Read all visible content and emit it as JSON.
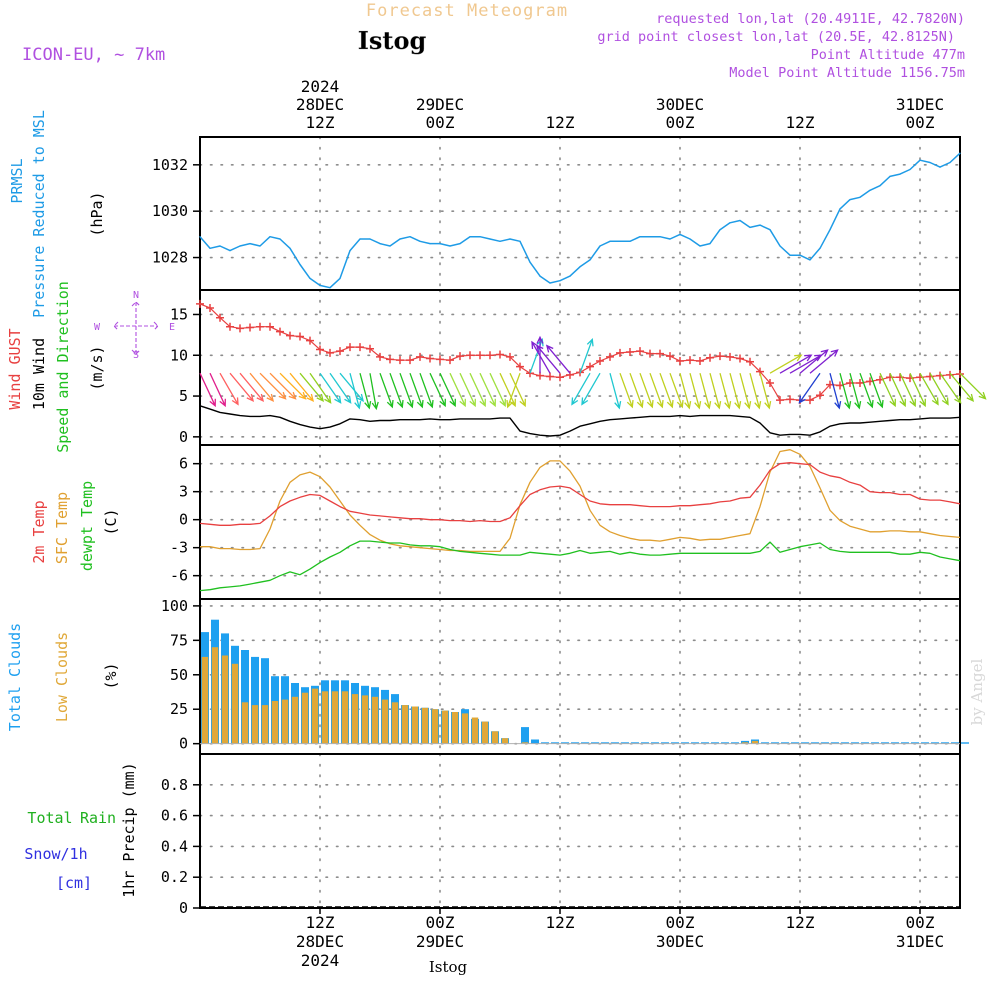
{
  "header": {
    "product": "Forecast Meteogram",
    "location": "Istog",
    "model": "ICON-EU, ~ 7km",
    "requested": "requested lon,lat (20.4911E, 42.7820N)",
    "closest": "grid point closest lon,lat (20.5E, 42.8125N)",
    "point_alt": "Point Altitude 477m",
    "model_alt": "Model Point Altitude 1156.75m",
    "footer_location": "Istog",
    "watermark": "by Angel"
  },
  "time_axis": {
    "top": [
      {
        "h": 12,
        "lines": [
          "2024",
          "28DEC",
          "12Z"
        ]
      },
      {
        "h": 24,
        "lines": [
          "29DEC",
          "00Z"
        ]
      },
      {
        "h": 36,
        "lines": [
          "12Z"
        ]
      },
      {
        "h": 48,
        "lines": [
          "30DEC",
          "00Z"
        ]
      },
      {
        "h": 60,
        "lines": [
          "12Z"
        ]
      },
      {
        "h": 72,
        "lines": [
          "31DEC",
          "00Z"
        ]
      }
    ],
    "bottom": [
      {
        "h": 12,
        "lines": [
          "12Z",
          "28DEC",
          "2024"
        ]
      },
      {
        "h": 24,
        "lines": [
          "00Z",
          "29DEC"
        ]
      },
      {
        "h": 36,
        "lines": [
          "12Z"
        ]
      },
      {
        "h": 48,
        "lines": [
          "00Z",
          "30DEC"
        ]
      },
      {
        "h": 60,
        "lines": [
          "12Z"
        ]
      },
      {
        "h": 72,
        "lines": [
          "00Z",
          "31DEC"
        ]
      }
    ]
  },
  "labels": {
    "pressure": [
      "PRMSL",
      "Pressure Reduced to MSL",
      "(hPa)"
    ],
    "wind": [
      "Wind GUST",
      "10m Wind",
      "Speed and Direction",
      "(m/s)"
    ],
    "compass": [
      "N",
      "W",
      "E",
      "S"
    ],
    "temp": [
      "2m Temp",
      "SFC Temp",
      "dewpt Temp",
      "(C)"
    ],
    "cloud": [
      "Total Clouds",
      "Low Clouds",
      "(%)"
    ],
    "precip": [
      "Total",
      "Rain",
      "Snow/1h",
      "[cm]",
      "1hr Precip (mm)"
    ]
  },
  "colors": {
    "pressure": "#1e9be6",
    "gust": "#e84040",
    "wind": "#000000",
    "t2m": "#e84040",
    "sfc": "#e0a030",
    "dew": "#20c020",
    "total_cloud": "#1ea0f0",
    "low_cloud": "#e0a838",
    "title": "#f0c890",
    "info": "#b050e0",
    "rain": "#20b020",
    "snow": "#3030e0"
  },
  "chart_data": [
    {
      "type": "line",
      "name": "pressure",
      "ylabel": "(hPa)",
      "ylim": [
        1026.6,
        1033.2
      ],
      "yticks": [
        1028,
        1030,
        1032
      ],
      "x_hours": [
        0,
        1,
        2,
        3,
        4,
        5,
        6,
        7,
        8,
        9,
        10,
        11,
        12,
        13,
        14,
        15,
        16,
        17,
        18,
        19,
        20,
        21,
        22,
        23,
        24,
        25,
        26,
        27,
        28,
        29,
        30,
        31,
        32,
        33,
        34,
        35,
        36,
        37,
        38,
        39,
        40,
        41,
        42,
        43,
        44,
        45,
        46,
        47,
        48,
        49,
        50,
        51,
        52,
        53,
        54,
        55,
        56,
        57,
        58,
        59,
        60,
        61,
        62,
        63,
        64,
        65,
        66,
        67,
        68,
        69,
        70,
        71,
        72,
        73,
        74,
        75,
        76
      ],
      "values": [
        1028.9,
        1028.4,
        1028.5,
        1028.3,
        1028.5,
        1028.6,
        1028.5,
        1028.9,
        1028.8,
        1028.4,
        1027.7,
        1027.1,
        1026.8,
        1026.7,
        1027.1,
        1028.3,
        1028.8,
        1028.8,
        1028.6,
        1028.5,
        1028.8,
        1028.9,
        1028.7,
        1028.6,
        1028.6,
        1028.5,
        1028.6,
        1028.9,
        1028.9,
        1028.8,
        1028.7,
        1028.8,
        1028.7,
        1027.8,
        1027.2,
        1026.9,
        1027.0,
        1027.2,
        1027.6,
        1027.9,
        1028.5,
        1028.7,
        1028.7,
        1028.7,
        1028.9,
        1028.9,
        1028.9,
        1028.8,
        1029.0,
        1028.8,
        1028.5,
        1028.6,
        1029.2,
        1029.5,
        1029.6,
        1029.3,
        1029.4,
        1029.2,
        1028.5,
        1028.1,
        1028.1,
        1027.9,
        1028.4,
        1029.2,
        1030.1,
        1030.5,
        1030.6,
        1030.9,
        1031.1,
        1031.5,
        1031.6,
        1031.8,
        1032.2,
        1032.1,
        1031.9,
        1032.1,
        1032.5
      ]
    },
    {
      "type": "line",
      "name": "wind",
      "ylabel": "(m/s)",
      "ylim": [
        -1.0,
        18.0
      ],
      "yticks": [
        0,
        5,
        10,
        15
      ],
      "x_hours": [
        0,
        1,
        2,
        3,
        4,
        5,
        6,
        7,
        8,
        9,
        10,
        11,
        12,
        13,
        14,
        15,
        16,
        17,
        18,
        19,
        20,
        21,
        22,
        23,
        24,
        25,
        26,
        27,
        28,
        29,
        30,
        31,
        32,
        33,
        34,
        35,
        36,
        37,
        38,
        39,
        40,
        41,
        42,
        43,
        44,
        45,
        46,
        47,
        48,
        49,
        50,
        51,
        52,
        53,
        54,
        55,
        56,
        57,
        58,
        59,
        60,
        61,
        62,
        63,
        64,
        65,
        66,
        67,
        68,
        69,
        70,
        71,
        72,
        73,
        74,
        75,
        76
      ],
      "gust": [
        16.3,
        15.8,
        14.6,
        13.5,
        13.3,
        13.4,
        13.5,
        13.5,
        12.9,
        12.4,
        12.3,
        11.8,
        10.7,
        10.3,
        10.5,
        11.0,
        11.0,
        10.8,
        9.8,
        9.5,
        9.4,
        9.4,
        9.8,
        9.6,
        9.5,
        9.4,
        9.9,
        10.0,
        10.0,
        10.0,
        10.1,
        9.8,
        8.6,
        7.8,
        7.5,
        7.4,
        7.3,
        7.6,
        7.9,
        8.6,
        9.3,
        9.8,
        10.3,
        10.4,
        10.5,
        10.2,
        10.2,
        9.9,
        9.3,
        9.4,
        9.3,
        9.7,
        9.9,
        9.8,
        9.6,
        9.2,
        8.0,
        6.6,
        4.5,
        4.6,
        4.5,
        4.5,
        5.1,
        6.4,
        6.3,
        6.6,
        6.6,
        6.8,
        7.0,
        7.3,
        7.3,
        7.2,
        7.3,
        7.4,
        7.5,
        7.6,
        7.7
      ],
      "speed": [
        3.8,
        3.4,
        3.0,
        2.8,
        2.6,
        2.5,
        2.5,
        2.6,
        2.4,
        1.9,
        1.5,
        1.2,
        1.0,
        1.2,
        1.6,
        2.2,
        2.1,
        1.9,
        2.0,
        2.0,
        2.1,
        2.1,
        2.1,
        2.2,
        2.1,
        2.1,
        2.2,
        2.2,
        2.2,
        2.2,
        2.3,
        2.3,
        0.7,
        0.4,
        0.2,
        0.1,
        0.2,
        0.7,
        1.3,
        1.6,
        1.9,
        2.1,
        2.2,
        2.3,
        2.4,
        2.5,
        2.5,
        2.5,
        2.6,
        2.5,
        2.6,
        2.6,
        2.6,
        2.6,
        2.5,
        2.4,
        1.7,
        0.5,
        0.2,
        0.3,
        0.3,
        0.2,
        0.6,
        1.3,
        1.6,
        1.7,
        1.7,
        1.8,
        1.9,
        2.0,
        2.1,
        2.1,
        2.2,
        2.3,
        2.3,
        2.3,
        2.4
      ],
      "dir_deg": [
        335,
        335,
        330,
        320,
        320,
        320,
        315,
        315,
        315,
        320,
        320,
        325,
        325,
        325,
        320,
        345,
        345,
        350,
        340,
        340,
        340,
        340,
        340,
        335,
        335,
        335,
        335,
        335,
        335,
        335,
        335,
        335,
        20,
        200,
        180,
        150,
        140,
        140,
        200,
        30,
        30,
        345,
        340,
        340,
        340,
        340,
        340,
        340,
        345,
        345,
        345,
        345,
        345,
        345,
        345,
        345,
        345,
        240,
        240,
        240,
        230,
        230,
        35,
        345,
        345,
        345,
        340,
        340,
        335,
        335,
        335,
        335,
        330,
        330,
        325,
        320,
        315
      ]
    },
    {
      "type": "line",
      "name": "temperature",
      "ylabel": "(C)",
      "ylim": [
        -8.5,
        8.0
      ],
      "yticks": [
        -6,
        -3,
        0,
        3,
        6
      ],
      "x_hours": [
        0,
        1,
        2,
        3,
        4,
        5,
        6,
        7,
        8,
        9,
        10,
        11,
        12,
        13,
        14,
        15,
        16,
        17,
        18,
        19,
        20,
        21,
        22,
        23,
        24,
        25,
        26,
        27,
        28,
        29,
        30,
        31,
        32,
        33,
        34,
        35,
        36,
        37,
        38,
        39,
        40,
        41,
        42,
        43,
        44,
        45,
        46,
        47,
        48,
        49,
        50,
        51,
        52,
        53,
        54,
        55,
        56,
        57,
        58,
        59,
        60,
        61,
        62,
        63,
        64,
        65,
        66,
        67,
        68,
        69,
        70,
        71,
        72,
        73,
        74,
        75,
        76
      ],
      "t2m": [
        -0.4,
        -0.5,
        -0.6,
        -0.6,
        -0.5,
        -0.5,
        -0.4,
        0.4,
        1.4,
        2.0,
        2.4,
        2.7,
        2.6,
        2.0,
        1.4,
        0.9,
        0.7,
        0.5,
        0.4,
        0.3,
        0.2,
        0.1,
        0.1,
        0.0,
        0.0,
        -0.1,
        -0.1,
        -0.2,
        -0.1,
        -0.2,
        -0.2,
        0.2,
        1.5,
        2.7,
        3.2,
        3.5,
        3.6,
        3.4,
        2.7,
        2.0,
        1.7,
        1.6,
        1.6,
        1.6,
        1.5,
        1.4,
        1.4,
        1.4,
        1.5,
        1.5,
        1.6,
        1.7,
        1.9,
        2.0,
        2.3,
        2.4,
        3.7,
        5.3,
        6.0,
        6.1,
        6.0,
        5.9,
        5.1,
        4.7,
        4.5,
        4.0,
        3.7,
        3.0,
        2.9,
        2.9,
        2.7,
        2.7,
        2.2,
        2.1,
        2.1,
        1.9,
        1.7
      ],
      "sfc": [
        -2.9,
        -2.9,
        -3.1,
        -3.1,
        -3.2,
        -3.2,
        -3.1,
        -1.0,
        2.0,
        4.0,
        4.8,
        5.1,
        4.6,
        3.5,
        2.0,
        0.5,
        -0.6,
        -1.6,
        -2.2,
        -2.6,
        -2.8,
        -2.9,
        -3.0,
        -3.1,
        -3.2,
        -3.3,
        -3.3,
        -3.4,
        -3.4,
        -3.4,
        -3.4,
        -2.0,
        1.6,
        4.0,
        5.6,
        6.3,
        6.3,
        5.2,
        3.6,
        1.0,
        -0.6,
        -1.3,
        -1.7,
        -2.0,
        -2.2,
        -2.2,
        -2.3,
        -2.1,
        -1.9,
        -2.0,
        -2.2,
        -2.1,
        -2.1,
        -1.9,
        -1.7,
        -1.5,
        1.4,
        5.1,
        7.3,
        7.5,
        7.0,
        5.7,
        3.4,
        1.0,
        -0.1,
        -0.7,
        -1.0,
        -1.3,
        -1.3,
        -1.2,
        -1.2,
        -1.3,
        -1.3,
        -1.5,
        -1.7,
        -1.8,
        -1.9
      ],
      "dewpt": [
        -7.6,
        -7.5,
        -7.3,
        -7.2,
        -7.1,
        -6.9,
        -6.7,
        -6.5,
        -6.0,
        -5.6,
        -5.9,
        -5.3,
        -4.6,
        -4.0,
        -3.5,
        -2.8,
        -2.3,
        -2.3,
        -2.4,
        -2.5,
        -2.5,
        -2.7,
        -2.8,
        -2.8,
        -2.9,
        -3.2,
        -3.4,
        -3.5,
        -3.6,
        -3.7,
        -3.8,
        -3.8,
        -3.8,
        -3.5,
        -3.6,
        -3.7,
        -3.8,
        -3.6,
        -3.3,
        -3.6,
        -3.5,
        -3.4,
        -3.7,
        -3.5,
        -3.7,
        -3.8,
        -3.8,
        -3.7,
        -3.6,
        -3.6,
        -3.6,
        -3.6,
        -3.6,
        -3.6,
        -3.6,
        -3.6,
        -3.4,
        -2.4,
        -3.5,
        -3.2,
        -2.9,
        -2.7,
        -2.5,
        -3.2,
        -3.4,
        -3.5,
        -3.5,
        -3.5,
        -3.5,
        -3.5,
        -3.7,
        -3.7,
        -3.5,
        -3.6,
        -4.0,
        -4.2,
        -4.4
      ]
    },
    {
      "type": "bar",
      "name": "clouds",
      "ylabel": "(%)",
      "ylim": [
        -7.5,
        105
      ],
      "yticks": [
        0,
        25,
        50,
        75,
        100
      ],
      "x_hours": [
        0,
        1,
        2,
        3,
        4,
        5,
        6,
        7,
        8,
        9,
        10,
        11,
        12,
        13,
        14,
        15,
        16,
        17,
        18,
        19,
        20,
        21,
        22,
        23,
        24,
        25,
        26,
        27,
        28,
        29,
        30,
        31,
        32,
        33,
        34,
        35,
        36,
        37,
        38,
        39,
        40,
        41,
        42,
        43,
        44,
        45,
        46,
        47,
        48,
        49,
        50,
        51,
        52,
        53,
        54,
        55,
        56,
        57,
        58,
        59,
        60,
        61,
        62,
        63,
        64,
        65,
        66,
        67,
        68,
        69,
        70,
        71,
        72,
        73,
        74,
        75,
        76
      ],
      "total": [
        81,
        90,
        80,
        71,
        68,
        63,
        62,
        49,
        49,
        44,
        41,
        42,
        46,
        46,
        46,
        44,
        42,
        41,
        39,
        36,
        28,
        27,
        26,
        25,
        24,
        23,
        25,
        18,
        16,
        9,
        4,
        0,
        12,
        3,
        1,
        1,
        1,
        1,
        1,
        1,
        1,
        1,
        1,
        1,
        1,
        1,
        1,
        1,
        1,
        1,
        1,
        1,
        1,
        1,
        2,
        3,
        1,
        1,
        1,
        1,
        1,
        1,
        1,
        1,
        1,
        1,
        1,
        1,
        1,
        1,
        1,
        1,
        1,
        1,
        1,
        1,
        1
      ],
      "low": [
        63,
        70,
        64,
        58,
        30,
        28,
        28,
        31,
        32,
        34,
        37,
        40,
        38,
        38,
        38,
        36,
        35,
        34,
        32,
        30,
        28,
        27,
        26,
        25,
        24,
        23,
        22,
        19,
        16,
        9,
        4,
        0,
        1,
        0,
        0,
        0,
        0,
        0,
        0,
        0,
        0,
        0,
        0,
        0,
        0,
        0,
        0,
        0,
        0,
        0,
        0,
        0,
        0,
        0,
        1,
        2,
        0,
        0,
        0,
        0,
        0,
        0,
        0,
        0,
        0,
        0,
        0,
        0,
        0,
        0,
        0,
        0,
        0,
        0,
        0,
        0,
        0
      ]
    },
    {
      "type": "bar",
      "name": "precip",
      "ylabel": "1hr Precip (mm)",
      "ylim": [
        0.0,
        1.0
      ],
      "yticks": [
        0.0,
        0.2,
        0.4,
        0.6,
        0.8
      ],
      "x_hours": [
        0,
        8,
        16,
        24,
        32,
        40,
        48,
        56,
        64,
        72,
        76
      ],
      "values": [
        0,
        0,
        0,
        0,
        0,
        0,
        0,
        0,
        0,
        0,
        0
      ]
    }
  ]
}
